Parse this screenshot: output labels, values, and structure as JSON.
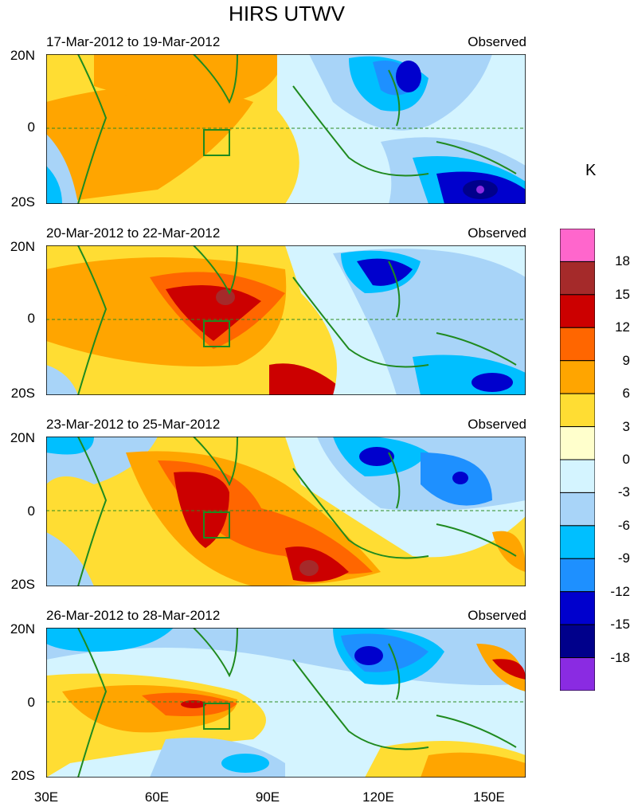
{
  "title": "HIRS UTWV",
  "unit_label": "K",
  "panels": [
    {
      "date_range": "17-Mar-2012 to 19-Mar-2012",
      "status": "Observed"
    },
    {
      "date_range": "20-Mar-2012 to 22-Mar-2012",
      "status": "Observed"
    },
    {
      "date_range": "23-Mar-2012 to 25-Mar-2012",
      "status": "Observed"
    },
    {
      "date_range": "26-Mar-2012 to 28-Mar-2012",
      "status": "Observed"
    }
  ],
  "lat_labels": {
    "north": "20N",
    "equator": "0",
    "south": "20S"
  },
  "lon_labels": [
    "30E",
    "60E",
    "90E",
    "120E",
    "150E"
  ],
  "colorbar": {
    "colors": [
      "#ff66cc",
      "#a52a2a",
      "#cc0000",
      "#ff6600",
      "#ffa500",
      "#ffdd33",
      "#ffffcc",
      "#d4f4ff",
      "#a8d4f8",
      "#00bfff",
      "#1e90ff",
      "#0000cd",
      "#00008b",
      "#8a2be2"
    ],
    "labels": [
      "18",
      "15",
      "12",
      "9",
      "6",
      "3",
      "0",
      "-3",
      "-6",
      "-9",
      "-12",
      "-15",
      "-18"
    ]
  }
}
